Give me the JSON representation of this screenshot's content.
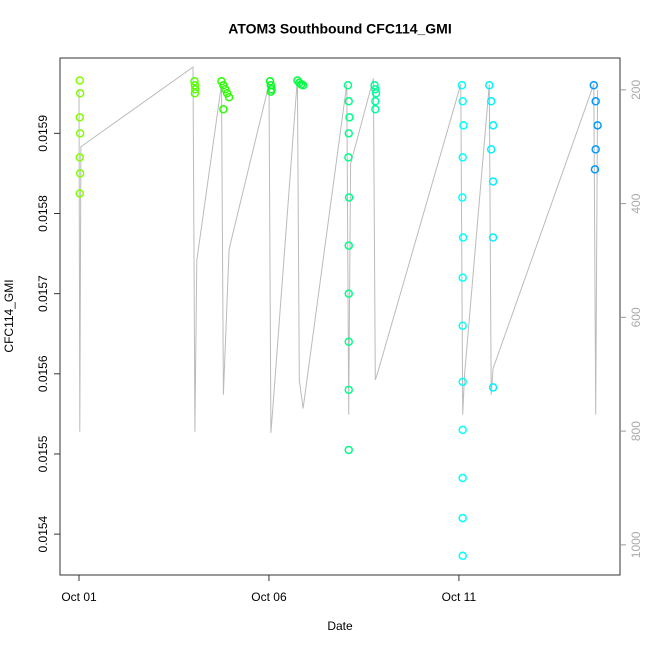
{
  "chart_data": {
    "type": "scatter",
    "title": "ATOM3 Southbound CFC114_GMI",
    "x_label": "Date",
    "y_label": "CFC114_GMI",
    "xlim": [
      -0.5,
      14.24
    ],
    "xticks": [
      {
        "value": 0,
        "label": "Oct 01"
      },
      {
        "value": 5,
        "label": "Oct 06"
      },
      {
        "value": 10,
        "label": "Oct 11"
      }
    ],
    "ylim": [
      0.015349,
      0.015994
    ],
    "yticks": [
      0.0154,
      0.0155,
      0.0156,
      0.0157,
      0.0158,
      0.0159
    ],
    "y2lim": [
      1053,
      144
    ],
    "y2ticks": [
      200,
      400,
      600,
      800,
      1000
    ],
    "series": [
      {
        "color": "#80ff00",
        "x": [
          0.02,
          0.03,
          0.02,
          0.03,
          0.02,
          0.03,
          0.02
        ],
        "values": [
          0.015966,
          0.01595,
          0.01592,
          0.0159,
          0.01587,
          0.01585,
          0.015825
        ]
      },
      {
        "color": "#55ff00",
        "x": [
          3.04,
          3.05,
          3.06,
          3.05
        ],
        "values": [
          0.015965,
          0.01596,
          0.015955,
          0.01595
        ]
      },
      {
        "color": "#2aff00",
        "x": [
          3.75,
          3.8,
          3.85,
          3.9,
          3.95,
          3.8
        ],
        "values": [
          0.015965,
          0.01596,
          0.015955,
          0.01595,
          0.015945,
          0.01593
        ]
      },
      {
        "color": "#00ff1a",
        "x": [
          5.03,
          5.05,
          5.07,
          5.05
        ],
        "values": [
          0.015965,
          0.01596,
          0.015955,
          0.015952
        ]
      },
      {
        "color": "#00ff40",
        "x": [
          5.75,
          5.8,
          5.85,
          5.9
        ],
        "values": [
          0.015966,
          0.015963,
          0.015961,
          0.01596
        ]
      },
      {
        "color": "#00ff88",
        "x": [
          7.08,
          7.1,
          7.12,
          7.1,
          7.09,
          7.11,
          7.1,
          7.1,
          7.1,
          7.1,
          7.1
        ],
        "values": [
          0.01596,
          0.01594,
          0.01592,
          0.0159,
          0.01587,
          0.01582,
          0.01576,
          0.0157,
          0.01564,
          0.01558,
          0.015505
        ]
      },
      {
        "color": "#00ff99",
        "x": [
          7.78,
          7.8,
          7.82,
          7.8,
          7.8
        ],
        "values": [
          0.01596,
          0.015955,
          0.01595,
          0.01594,
          0.01593
        ]
      },
      {
        "color": "#00ffff",
        "x": [
          10.08,
          10.1,
          10.12,
          10.1,
          10.09,
          10.11,
          10.1,
          10.1,
          10.1,
          10.1,
          10.1,
          10.1,
          10.1
        ],
        "values": [
          0.01596,
          0.01594,
          0.01591,
          0.01587,
          0.01582,
          0.01577,
          0.01572,
          0.01566,
          0.01559,
          0.01553,
          0.01547,
          0.01542,
          0.015373
        ]
      },
      {
        "color": "#00f0ff",
        "x": [
          10.8,
          10.85,
          10.9,
          10.85,
          10.9,
          10.9,
          10.9
        ],
        "values": [
          0.01596,
          0.01594,
          0.01591,
          0.01588,
          0.01584,
          0.01577,
          0.015583
        ]
      },
      {
        "color": "#0099ff",
        "x": [
          13.55,
          13.6,
          13.65,
          13.6,
          13.58
        ],
        "values": [
          0.01596,
          0.01594,
          0.01591,
          0.01588,
          0.015855
        ]
      }
    ],
    "pressure": {
      "color": "#bbbbbb",
      "axis": "y2",
      "x": [
        0.0,
        0.02,
        0.05,
        3.0,
        3.05,
        3.1,
        3.75,
        3.8,
        3.95,
        5.0,
        5.05,
        5.1,
        5.75,
        5.8,
        5.9,
        7.05,
        7.1,
        7.15,
        7.75,
        7.8,
        7.85,
        10.05,
        10.1,
        10.15,
        10.8,
        10.85,
        10.9,
        13.55,
        13.6,
        13.65
      ],
      "values": [
        200,
        801,
        300,
        160,
        801,
        500,
        190,
        736,
        480,
        190,
        803,
        760,
        180,
        710,
        760,
        190,
        771,
        330,
        180,
        710,
        700,
        190,
        771,
        700,
        190,
        736,
        690,
        190,
        771,
        200
      ]
    }
  }
}
